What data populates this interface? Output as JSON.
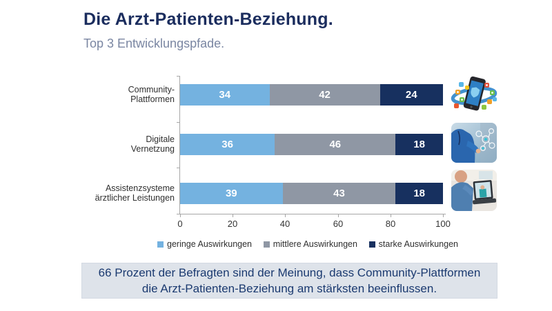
{
  "page": {
    "title": "Die Arzt-Patienten-Beziehung.",
    "subtitle": "Top 3 Entwicklungspfade."
  },
  "chart_data": {
    "type": "bar",
    "orientation": "horizontal",
    "stacked": true,
    "title": "Die Arzt-Patienten-Beziehung.",
    "subtitle": "Top 3 Entwicklungspfade.",
    "categories": [
      "Community-Plattformen",
      "Digitale Vernetzung",
      "Assistenzsysteme ärztlicher Leistungen"
    ],
    "category_label_lines": [
      [
        "Community-",
        "Plattformen"
      ],
      [
        "Digitale",
        "Vernetzung"
      ],
      [
        "Assistenzsysteme",
        "ärztlicher Leistungen"
      ]
    ],
    "series": [
      {
        "name": "geringe Auswirkungen",
        "color": "#74B2E0",
        "values": [
          34,
          36,
          39
        ]
      },
      {
        "name": "mittlere Auswirkungen",
        "color": "#8F97A4",
        "values": [
          42,
          46,
          43
        ]
      },
      {
        "name": "starke Auswirkungen",
        "color": "#17305F",
        "values": [
          24,
          18,
          18
        ]
      }
    ],
    "xlim": [
      0,
      100
    ],
    "xticks": [
      "0",
      "20",
      "40",
      "60",
      "80",
      "100"
    ],
    "grid": false,
    "legend_position": "bottom"
  },
  "thumbnails": [
    {
      "name": "smartphone-app-icons-photo"
    },
    {
      "name": "doctor-digital-network-photo"
    },
    {
      "name": "patient-laptop-telemedicine-photo"
    }
  ],
  "footer_banner": {
    "line1": "66 Prozent der Befragten sind der Meinung, dass Community-Plattformen",
    "line2": "die Arzt-Patienten-Beziehung am stärksten beeinflussen.",
    "background": "#DEE3EA",
    "text_color": "#1B3A70"
  },
  "colors": {
    "title": "#1B2D5E",
    "subtitle": "#7A86A2",
    "axis": "#A6A6A6",
    "bar_value_text": "#FFFFFF"
  }
}
